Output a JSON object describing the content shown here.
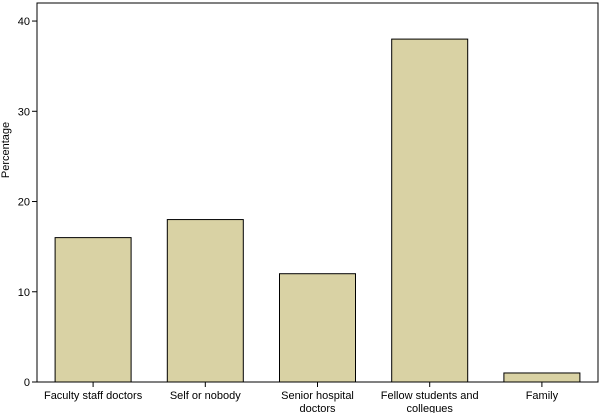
{
  "chart_data": {
    "type": "bar",
    "title": "",
    "xlabel": "",
    "ylabel": "Percentage",
    "categories": [
      [
        "Faculty staff doctors"
      ],
      [
        "Self or nobody"
      ],
      [
        "Senior hospital",
        "doctors"
      ],
      [
        "Fellow students and",
        "collegues"
      ],
      [
        "Family"
      ]
    ],
    "values": [
      16,
      18,
      12,
      38,
      1
    ],
    "ylim": [
      0,
      42
    ],
    "yticks": [
      0,
      10,
      20,
      30,
      40
    ],
    "grid": false,
    "colors": {
      "bar_fill": "#d9d2a4",
      "bar_stroke": "#000000",
      "axis": "#000000",
      "background": "#ffffff"
    }
  }
}
